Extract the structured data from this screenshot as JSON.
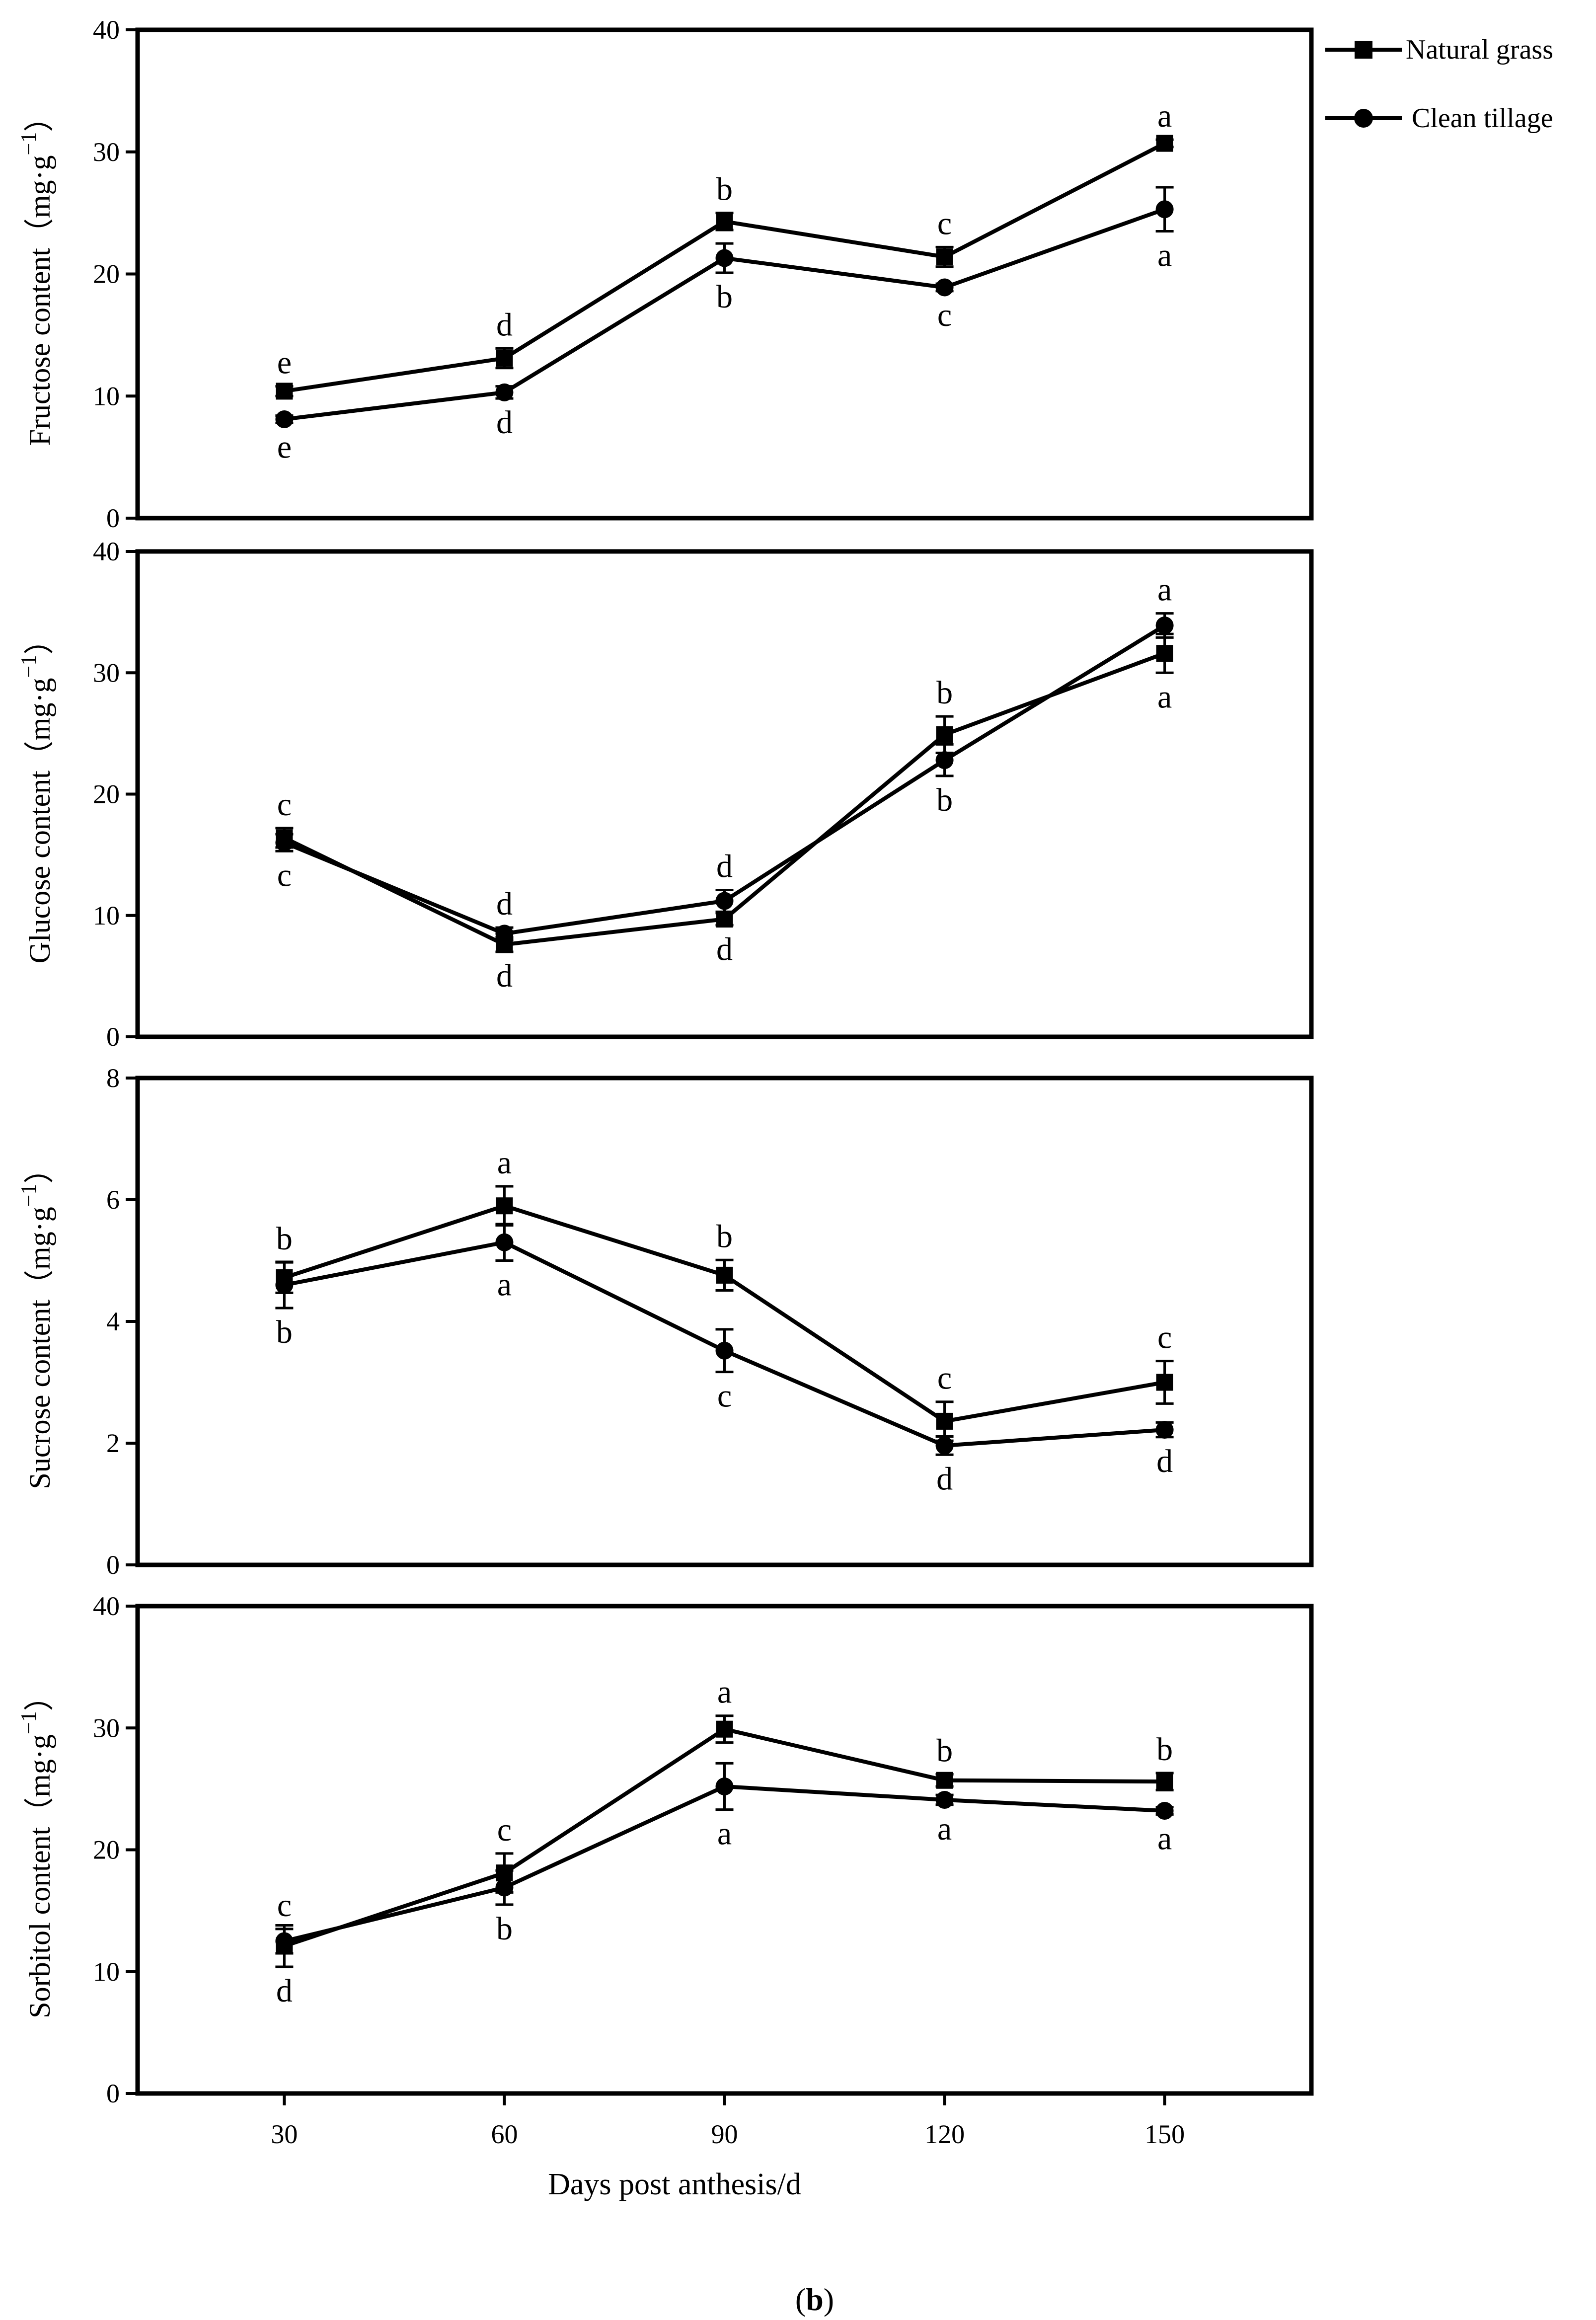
{
  "figure": {
    "xlabel": "Days post anthesis/d",
    "caption": "(b)",
    "legend": [
      {
        "label": "Natural grass",
        "marker": "square"
      },
      {
        "label": "Clean tillage",
        "marker": "circle"
      }
    ]
  },
  "chart_data": [
    {
      "type": "line",
      "ylabel": "Fructose content（mg·g−1）",
      "ylim": [
        0,
        40
      ],
      "yticks": [
        0,
        10,
        20,
        30,
        40
      ],
      "x": [
        30,
        60,
        90,
        120,
        150
      ],
      "series": [
        {
          "name": "Natural grass",
          "marker": "square",
          "values": [
            10.4,
            13.1,
            24.3,
            21.4,
            30.7
          ],
          "errors": [
            0.4,
            0.8,
            0.7,
            0.8,
            0.3
          ],
          "letters": [
            "e",
            "d",
            "b",
            "c",
            "a"
          ]
        },
        {
          "name": "Clean tillage",
          "marker": "circle",
          "values": [
            8.1,
            10.3,
            21.3,
            18.9,
            25.3
          ],
          "errors": [
            0.3,
            0.5,
            1.2,
            0.3,
            1.8
          ],
          "letters": [
            "e",
            "d",
            "b",
            "c",
            "a"
          ]
        }
      ]
    },
    {
      "type": "line",
      "ylabel": "Glucose content（mg·g−1）",
      "ylim": [
        0,
        40
      ],
      "yticks": [
        0,
        10,
        20,
        30,
        40
      ],
      "x": [
        30,
        60,
        90,
        120,
        150
      ],
      "series": [
        {
          "name": "Natural grass",
          "marker": "square",
          "values": [
            16.4,
            7.6,
            9.7,
            24.9,
            31.6
          ],
          "errors": [
            0.8,
            0.6,
            0.5,
            1.5,
            1.6
          ],
          "letters": [
            "c",
            "d",
            "d",
            "b",
            "a"
          ]
        },
        {
          "name": "Clean tillage",
          "marker": "circle",
          "values": [
            16.0,
            8.5,
            11.2,
            22.8,
            33.9
          ],
          "errors": [
            0.7,
            0.5,
            0.9,
            1.3,
            1.0
          ],
          "letters": [
            "c",
            "d",
            "d",
            "b",
            "a"
          ]
        }
      ]
    },
    {
      "type": "line",
      "ylabel": "Sucrose content（mg·g−1）",
      "ylim": [
        0,
        8
      ],
      "yticks": [
        0,
        2,
        4,
        6,
        8
      ],
      "x": [
        30,
        60,
        90,
        120,
        150
      ],
      "series": [
        {
          "name": "Natural grass",
          "marker": "square",
          "values": [
            4.72,
            5.9,
            4.76,
            2.36,
            3.0
          ],
          "errors": [
            0.25,
            0.32,
            0.25,
            0.32,
            0.35
          ],
          "letters": [
            "b",
            "a",
            "b",
            "c",
            "c"
          ]
        },
        {
          "name": "Clean tillage",
          "marker": "circle",
          "values": [
            4.6,
            5.3,
            3.52,
            1.96,
            2.22
          ],
          "errors": [
            0.38,
            0.3,
            0.35,
            0.15,
            0.12
          ],
          "letters": [
            "b",
            "a",
            "c",
            "d",
            "d"
          ]
        }
      ]
    },
    {
      "type": "line",
      "ylabel": "Sorbitol content（mg·g−1）",
      "ylim": [
        0,
        40
      ],
      "yticks": [
        0,
        10,
        20,
        30,
        40
      ],
      "xticks": [
        30,
        60,
        90,
        120,
        150
      ],
      "x": [
        30,
        60,
        90,
        120,
        150
      ],
      "series": [
        {
          "name": "Natural grass",
          "marker": "square",
          "values": [
            12.1,
            18.1,
            29.9,
            25.7,
            25.6
          ],
          "errors": [
            1.7,
            1.6,
            1.1,
            0.5,
            0.7
          ],
          "letters": [
            "d",
            "c",
            "a",
            "b",
            "b"
          ]
        },
        {
          "name": "Clean tillage",
          "marker": "circle",
          "values": [
            12.5,
            16.9,
            25.2,
            24.1,
            23.2
          ],
          "errors": [
            1.0,
            1.4,
            1.9,
            0.4,
            0.3
          ],
          "letters": [
            "c",
            "b",
            "a",
            "a",
            "a"
          ]
        }
      ]
    }
  ]
}
